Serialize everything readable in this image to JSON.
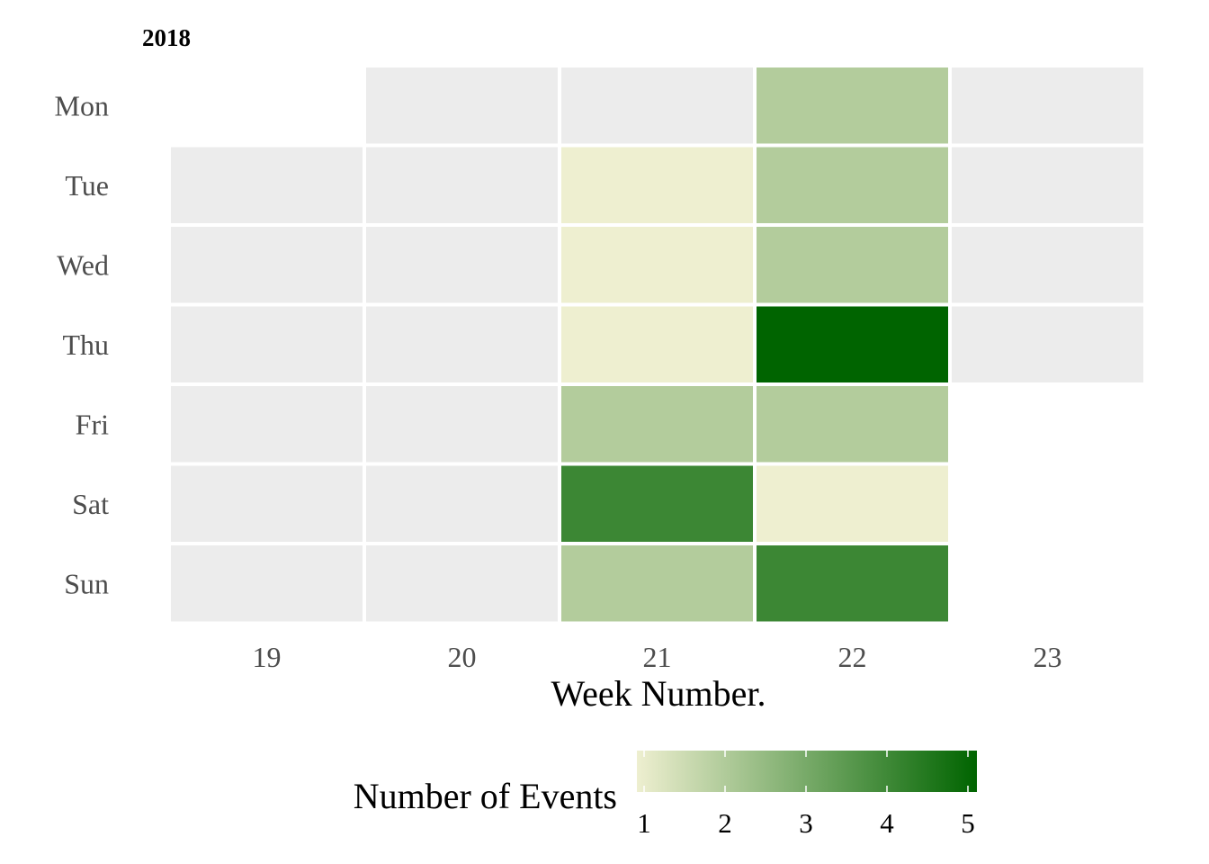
{
  "chart_data": {
    "type": "heatmap",
    "title": "2018",
    "xlabel": "Week Number.",
    "ylabel": "",
    "x_categories": [
      "19",
      "20",
      "21",
      "22",
      "23"
    ],
    "y_categories": [
      "Mon",
      "Tue",
      "Wed",
      "Thu",
      "Fri",
      "Sat",
      "Sun"
    ],
    "cells": [
      {
        "week": "20",
        "day": "Mon",
        "value": null
      },
      {
        "week": "21",
        "day": "Mon",
        "value": null
      },
      {
        "week": "22",
        "day": "Mon",
        "value": 2
      },
      {
        "week": "23",
        "day": "Mon",
        "value": null
      },
      {
        "week": "19",
        "day": "Tue",
        "value": null
      },
      {
        "week": "20",
        "day": "Tue",
        "value": null
      },
      {
        "week": "21",
        "day": "Tue",
        "value": 1
      },
      {
        "week": "22",
        "day": "Tue",
        "value": 2
      },
      {
        "week": "23",
        "day": "Tue",
        "value": null
      },
      {
        "week": "19",
        "day": "Wed",
        "value": null
      },
      {
        "week": "20",
        "day": "Wed",
        "value": null
      },
      {
        "week": "21",
        "day": "Wed",
        "value": 1
      },
      {
        "week": "22",
        "day": "Wed",
        "value": 2
      },
      {
        "week": "23",
        "day": "Wed",
        "value": null
      },
      {
        "week": "19",
        "day": "Thu",
        "value": null
      },
      {
        "week": "20",
        "day": "Thu",
        "value": null
      },
      {
        "week": "21",
        "day": "Thu",
        "value": 1
      },
      {
        "week": "22",
        "day": "Thu",
        "value": 5
      },
      {
        "week": "23",
        "day": "Thu",
        "value": null
      },
      {
        "week": "19",
        "day": "Fri",
        "value": null
      },
      {
        "week": "20",
        "day": "Fri",
        "value": null
      },
      {
        "week": "21",
        "day": "Fri",
        "value": 2
      },
      {
        "week": "22",
        "day": "Fri",
        "value": 2
      },
      {
        "week": "19",
        "day": "Sat",
        "value": null
      },
      {
        "week": "20",
        "day": "Sat",
        "value": null
      },
      {
        "week": "21",
        "day": "Sat",
        "value": 4
      },
      {
        "week": "22",
        "day": "Sat",
        "value": 1
      },
      {
        "week": "19",
        "day": "Sun",
        "value": null
      },
      {
        "week": "20",
        "day": "Sun",
        "value": null
      },
      {
        "week": "21",
        "day": "Sun",
        "value": 2
      },
      {
        "week": "22",
        "day": "Sun",
        "value": 4
      }
    ],
    "legend": {
      "title": "Number of Events",
      "position": "bottom",
      "min": 1,
      "max": 5,
      "ticks": [
        "1",
        "2",
        "3",
        "4",
        "5"
      ],
      "low_color": "#EEEFD0",
      "high_color": "#006400"
    },
    "empty_cell_color": "#ECECEC",
    "grid": false
  }
}
